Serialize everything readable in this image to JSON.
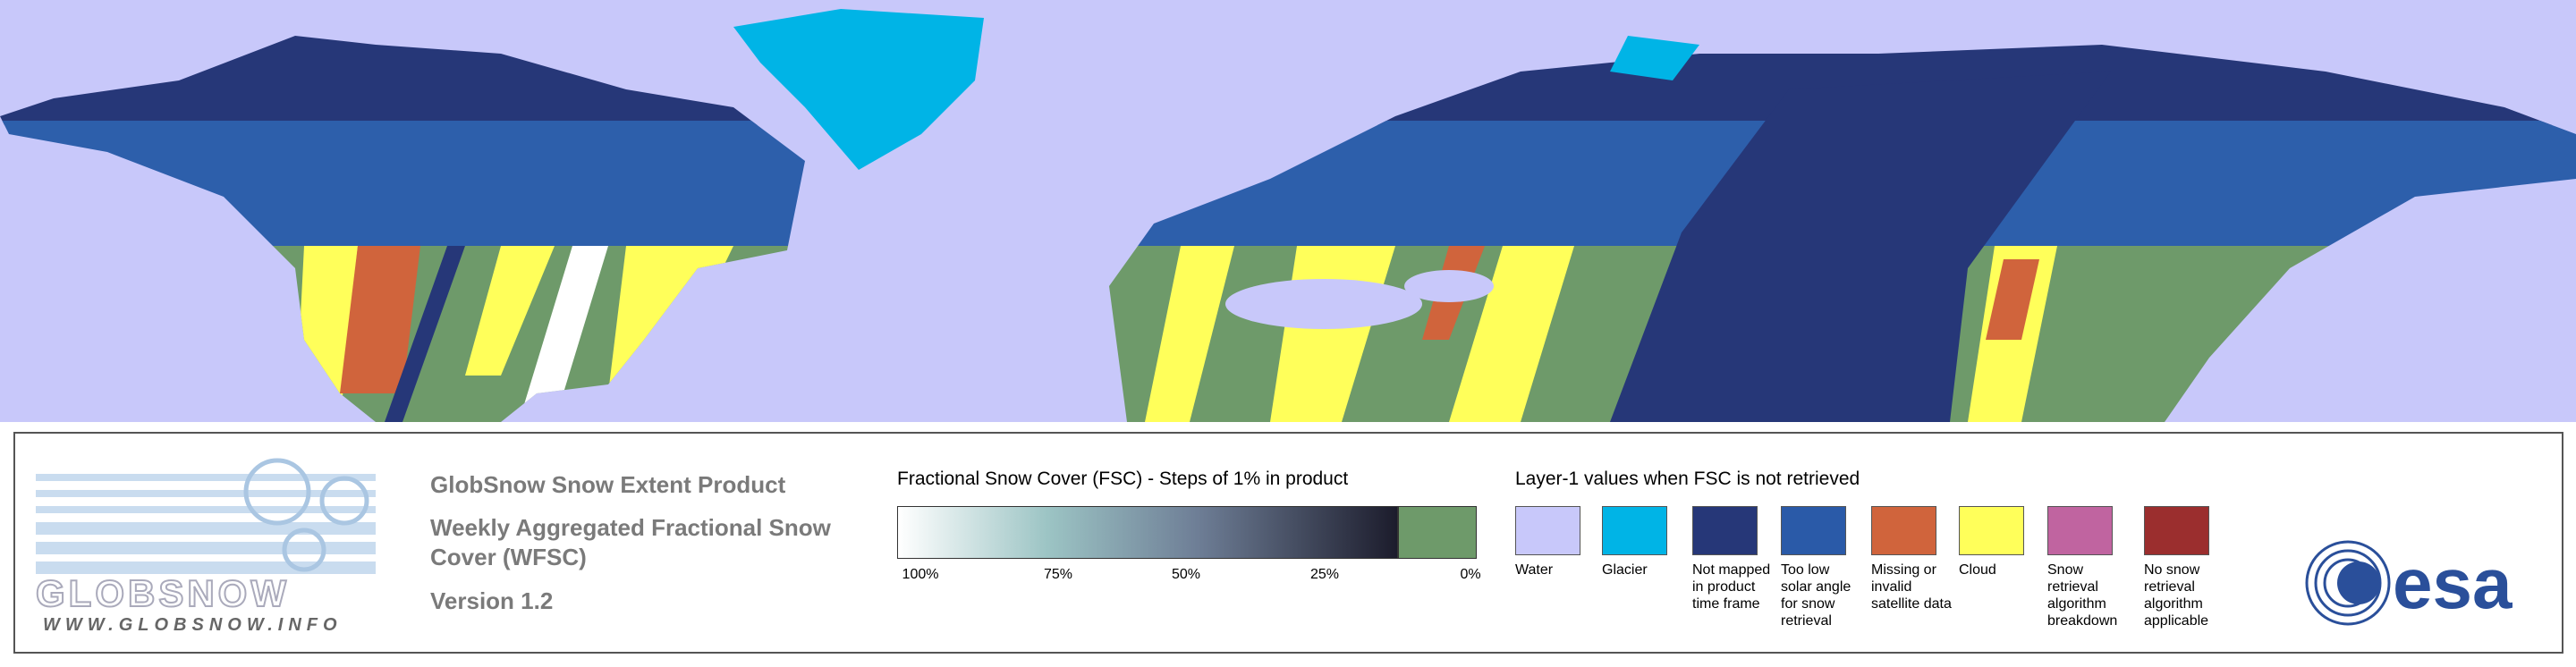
{
  "header": {
    "title": "GlobSnow Snow Extent Product",
    "subtitle": "Weekly Aggregated Fractional Snow Cover (WFSC)",
    "version": "Version 1.2"
  },
  "logo": {
    "name": "GLOBSNOW",
    "url": "WWW.GLOBSNOW.INFO",
    "esa": "esa"
  },
  "fsc_legend": {
    "title": "Fractional Snow Cover (FSC) - Steps of 1% in product",
    "ticks": [
      "100%",
      "75%",
      "50%",
      "25%",
      "0%"
    ]
  },
  "layer1_legend": {
    "title": "Layer-1 values when FSC is not retrieved",
    "items": [
      {
        "label": "Water",
        "color": "#c8c8fa"
      },
      {
        "label": "Glacier",
        "color": "#00b4e6"
      },
      {
        "label": "Not mapped in product time frame",
        "color": "#263778"
      },
      {
        "label": "Too low solar angle for snow retrieval",
        "color": "#2a5aa8"
      },
      {
        "label": "Missing or invalid satellite data",
        "color": "#d0643c"
      },
      {
        "label": "Cloud",
        "color": "#ffff5a"
      },
      {
        "label": "Snow retrieval algorithm breakdown",
        "color": "#c064a0"
      },
      {
        "label": "No snow retrieval algorithm applicable",
        "color": "#9b2e2e"
      }
    ]
  }
}
